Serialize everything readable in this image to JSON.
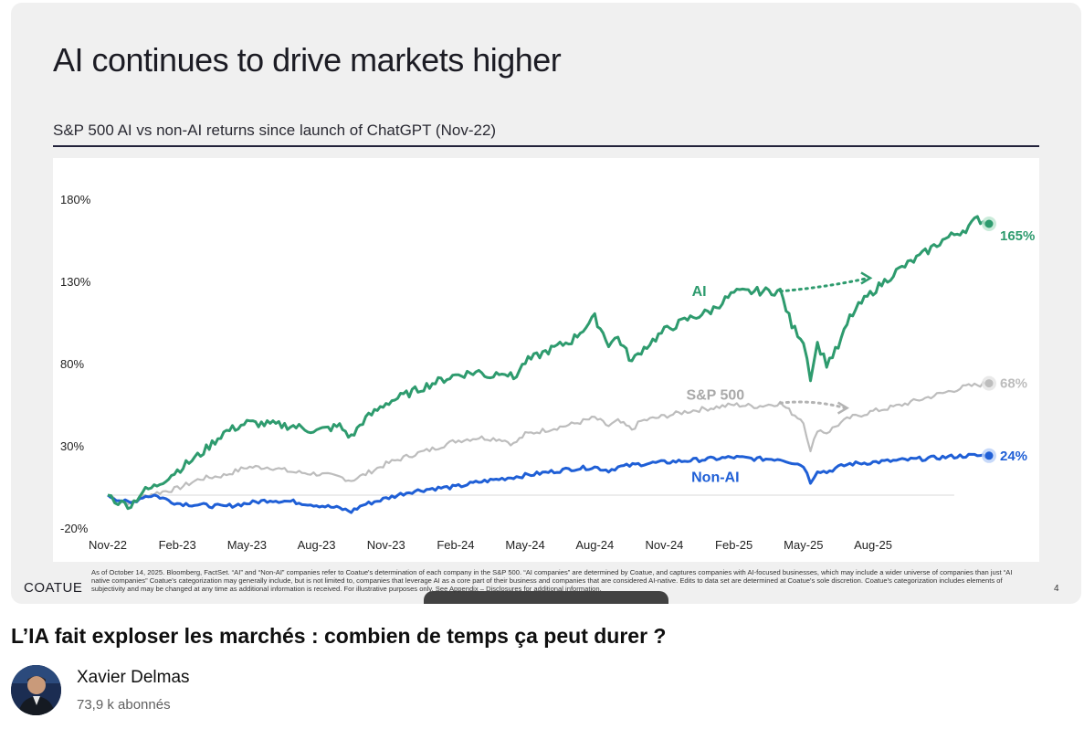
{
  "slide": {
    "title": "AI continues to drive markets higher",
    "subtitle": "S&P 500 AI vs non-AI returns since launch of ChatGPT (Nov-22)",
    "footnote": "As of October 14, 2025. Bloomberg, FactSet. “AI” and “Non-AI” companies refer to Coatue's determination of each company in the S&P 500. “AI companies” are determined by Coatue, and captures companies with AI-focused businesses, which may include a wider universe of companies than just “AI native companies” Coatue's categorization may generally include, but is not limited to, companies that leverage AI as a core part of their business and companies that are considered AI-native. Edits to data set are determined at Coatue's sole discretion. Coatue's categorization includes elements of subjectivity and may be changed at any time as additional information is received. For illustrative purposes only. See Appendix – Disclosures for additional information.",
    "logo": "COATUE",
    "page_number": "4"
  },
  "chart_data": {
    "type": "line",
    "title": "S&P 500 AI vs non-AI returns since launch of ChatGPT (Nov-22)",
    "x_ticks": [
      "Nov-22",
      "Feb-23",
      "May-23",
      "Aug-23",
      "Nov-23",
      "Feb-24",
      "May-24",
      "Aug-24",
      "Nov-24",
      "Feb-25",
      "May-25",
      "Aug-25"
    ],
    "y_ticks": [
      "180%",
      "130%",
      "80%",
      "30%",
      "-20%"
    ],
    "ylim": [
      -20,
      180
    ],
    "x_range_months": [
      0,
      35
    ],
    "series": [
      {
        "name": "AI",
        "color": "#2e9b6e",
        "end_label": "165%",
        "points": [
          [
            0,
            0
          ],
          [
            0.3,
            -3
          ],
          [
            0.6,
            -5
          ],
          [
            1,
            -6
          ],
          [
            1.5,
            2
          ],
          [
            2,
            5
          ],
          [
            3,
            15
          ],
          [
            4,
            25
          ],
          [
            5,
            38
          ],
          [
            6,
            44
          ],
          [
            7,
            43
          ],
          [
            8,
            42
          ],
          [
            9,
            39
          ],
          [
            10,
            42
          ],
          [
            10.5,
            35
          ],
          [
            11,
            45
          ],
          [
            12,
            56
          ],
          [
            13,
            62
          ],
          [
            14,
            68
          ],
          [
            15,
            73
          ],
          [
            16,
            75
          ],
          [
            16.5,
            72
          ],
          [
            17,
            76
          ],
          [
            17.5,
            71
          ],
          [
            18,
            81
          ],
          [
            19,
            88
          ],
          [
            20,
            94
          ],
          [
            21,
            108
          ],
          [
            21.6,
            92
          ],
          [
            22,
            96
          ],
          [
            22.6,
            81
          ],
          [
            23,
            88
          ],
          [
            24,
            100
          ],
          [
            25,
            107
          ],
          [
            26,
            112
          ],
          [
            27,
            123
          ],
          [
            28,
            124
          ],
          [
            29,
            124
          ],
          [
            29.5,
            103
          ],
          [
            30,
            94
          ],
          [
            30.3,
            72
          ],
          [
            30.6,
            92
          ],
          [
            31,
            80
          ],
          [
            31.5,
            90
          ],
          [
            32,
            108
          ],
          [
            32.5,
            117
          ],
          [
            33,
            124
          ],
          [
            33.5,
            130
          ],
          [
            34,
            136
          ],
          [
            35,
            145
          ],
          [
            36,
            155
          ],
          [
            37,
            162
          ],
          [
            37.5,
            168
          ],
          [
            38,
            165
          ]
        ]
      },
      {
        "name": "S&P 500",
        "color": "#bdbdbd",
        "end_label": "68%",
        "points": [
          [
            0,
            0
          ],
          [
            0.5,
            -3
          ],
          [
            1,
            -5
          ],
          [
            1.5,
            -1
          ],
          [
            2,
            1
          ],
          [
            3,
            4
          ],
          [
            4,
            10
          ],
          [
            5,
            12
          ],
          [
            6,
            17
          ],
          [
            7,
            17
          ],
          [
            8,
            14
          ],
          [
            9,
            13
          ],
          [
            10,
            11
          ],
          [
            10.5,
            9
          ],
          [
            11,
            12
          ],
          [
            12,
            19
          ],
          [
            13,
            24
          ],
          [
            14,
            28
          ],
          [
            15,
            33
          ],
          [
            16,
            35
          ],
          [
            17,
            34
          ],
          [
            17.5,
            31
          ],
          [
            18,
            37
          ],
          [
            19,
            40
          ],
          [
            20,
            43
          ],
          [
            21,
            47
          ],
          [
            21.6,
            42
          ],
          [
            22,
            45
          ],
          [
            22.6,
            40
          ],
          [
            23,
            45
          ],
          [
            24,
            48
          ],
          [
            25,
            51
          ],
          [
            26,
            53
          ],
          [
            27,
            55
          ],
          [
            28,
            54
          ],
          [
            29,
            56
          ],
          [
            29.5,
            50
          ],
          [
            30,
            45
          ],
          [
            30.3,
            26
          ],
          [
            30.6,
            40
          ],
          [
            31,
            38
          ],
          [
            31.5,
            43
          ],
          [
            32,
            47
          ],
          [
            33,
            51
          ],
          [
            34,
            54
          ],
          [
            35,
            58
          ],
          [
            36,
            62
          ],
          [
            37,
            66
          ],
          [
            38,
            68
          ]
        ]
      },
      {
        "name": "Non-AI",
        "color": "#1f5fd6",
        "end_label": "24%",
        "points": [
          [
            0,
            0
          ],
          [
            0.5,
            -3
          ],
          [
            1,
            -5
          ],
          [
            1.5,
            -1
          ],
          [
            2,
            0
          ],
          [
            3,
            -5
          ],
          [
            4,
            -6
          ],
          [
            5,
            -7
          ],
          [
            6,
            -5
          ],
          [
            7,
            -3
          ],
          [
            8,
            -4
          ],
          [
            9,
            -6
          ],
          [
            10,
            -8
          ],
          [
            10.5,
            -10
          ],
          [
            11,
            -6
          ],
          [
            12,
            -2
          ],
          [
            13,
            2
          ],
          [
            14,
            4
          ],
          [
            15,
            5
          ],
          [
            16,
            8
          ],
          [
            17,
            10
          ],
          [
            18,
            12
          ],
          [
            19,
            14
          ],
          [
            20,
            16
          ],
          [
            21,
            17
          ],
          [
            21.6,
            15
          ],
          [
            22,
            17
          ],
          [
            23,
            19
          ],
          [
            24,
            20
          ],
          [
            25,
            21
          ],
          [
            26,
            22
          ],
          [
            27,
            23
          ],
          [
            28,
            22
          ],
          [
            29,
            22
          ],
          [
            29.5,
            20
          ],
          [
            30,
            18
          ],
          [
            30.3,
            8
          ],
          [
            30.6,
            15
          ],
          [
            31,
            14
          ],
          [
            31.5,
            17
          ],
          [
            32,
            19
          ],
          [
            33,
            20
          ],
          [
            34,
            21
          ],
          [
            35,
            22
          ],
          [
            36,
            23
          ],
          [
            37,
            24
          ],
          [
            38,
            24
          ]
        ]
      }
    ],
    "baseline": 0,
    "annotations": [
      {
        "text": "AI",
        "series": "AI"
      },
      {
        "text": "S&P 500",
        "series": "S&P 500"
      },
      {
        "text": "Non-AI",
        "series": "Non-AI"
      }
    ]
  },
  "video": {
    "title": "L’IA fait exploser les marchés : combien de temps ça peut durer ?",
    "channel_name": "Xavier Delmas",
    "subscribers": "73,9 k abonnés"
  },
  "colors": {
    "ai": "#2e9b6e",
    "sp500": "#bdbdbd",
    "non_ai": "#1f5fd6"
  }
}
